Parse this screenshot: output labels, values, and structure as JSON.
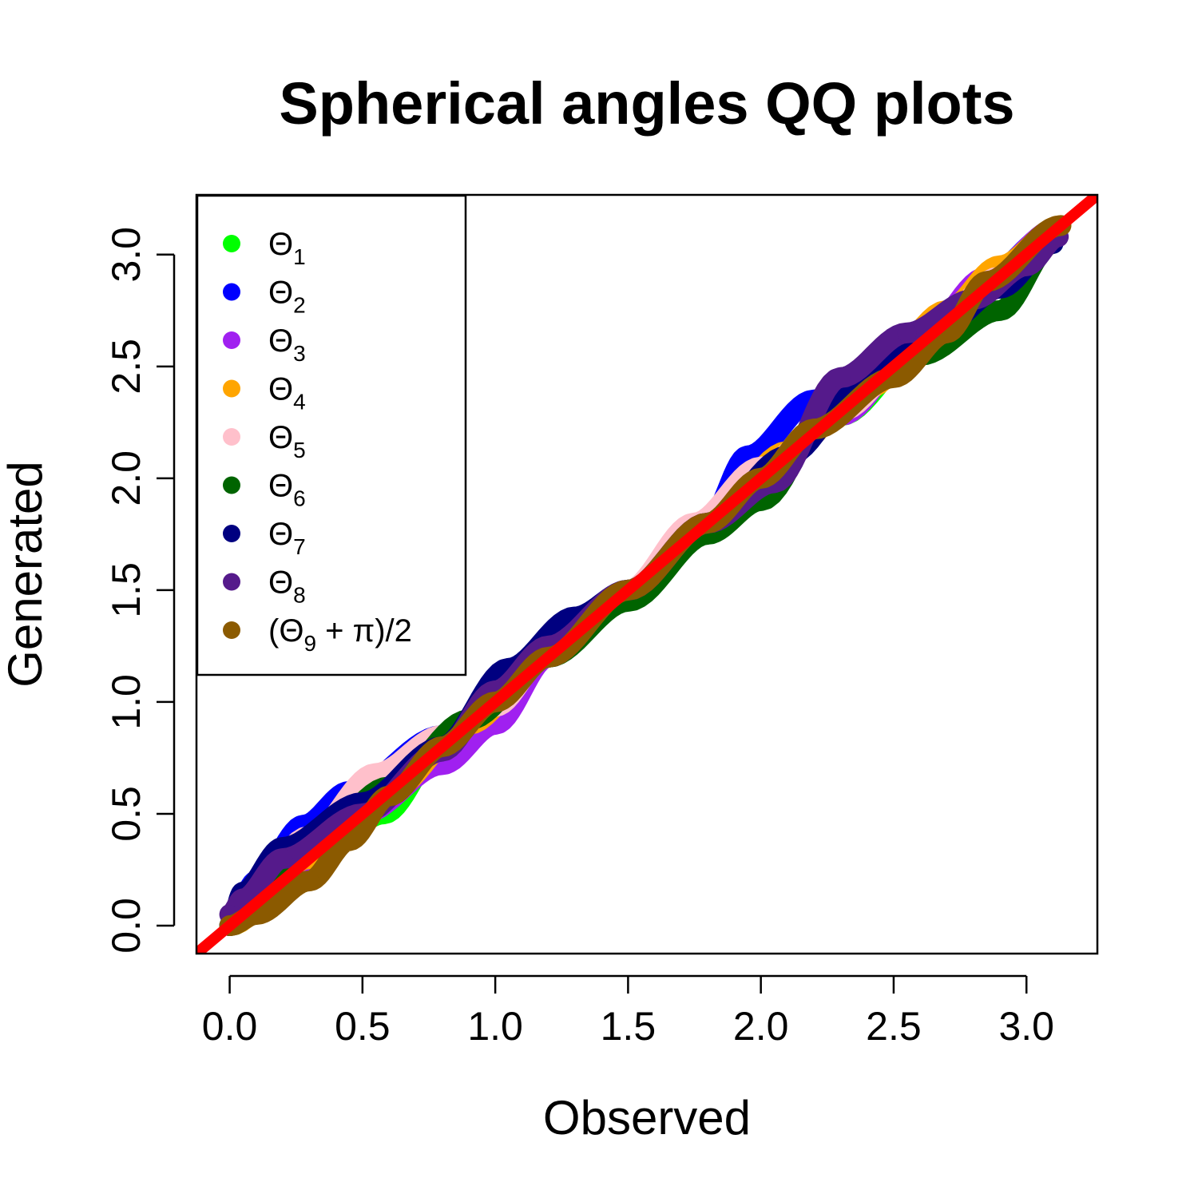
{
  "chart_data": {
    "type": "scatter",
    "title": "Spherical angles QQ plots",
    "xlabel": "Observed",
    "ylabel": "Generated",
    "xlim": [
      -0.125,
      3.267
    ],
    "ylim": [
      -0.125,
      3.267
    ],
    "xticks": [
      0.0,
      0.5,
      1.0,
      1.5,
      2.0,
      2.5,
      3.0
    ],
    "yticks": [
      0.0,
      0.5,
      1.0,
      1.5,
      2.0,
      2.5,
      3.0
    ],
    "xtick_labels": [
      "0.0",
      "0.5",
      "1.0",
      "1.5",
      "2.0",
      "2.5",
      "3.0"
    ],
    "ytick_labels": [
      "0.0",
      "0.5",
      "1.0",
      "1.5",
      "2.0",
      "2.5",
      "3.0"
    ],
    "reference_line": {
      "type": "y=x",
      "color": "#ff0000"
    },
    "legend_position": "top-left",
    "series": [
      {
        "name": "Θ",
        "sub": "1",
        "suffix": "",
        "color": "#00ff00",
        "points": [
          [
            0.0,
            0.0
          ],
          [
            0.2,
            0.2
          ],
          [
            0.4,
            0.4
          ],
          [
            0.58,
            0.5
          ],
          [
            0.8,
            0.8
          ],
          [
            1.0,
            1.0
          ],
          [
            1.2,
            1.2
          ],
          [
            1.5,
            1.5
          ],
          [
            1.8,
            1.78
          ],
          [
            2.0,
            1.98
          ],
          [
            2.3,
            2.28
          ],
          [
            2.6,
            2.58
          ],
          [
            2.9,
            2.88
          ],
          [
            3.1,
            3.1
          ]
        ]
      },
      {
        "name": "Θ",
        "sub": "2",
        "suffix": "",
        "color": "#0000ff",
        "points": [
          [
            0.0,
            0.0
          ],
          [
            0.1,
            0.2
          ],
          [
            0.28,
            0.45
          ],
          [
            0.45,
            0.6
          ],
          [
            0.8,
            0.85
          ],
          [
            1.0,
            1.0
          ],
          [
            1.2,
            1.25
          ],
          [
            1.5,
            1.5
          ],
          [
            1.8,
            1.8
          ],
          [
            1.95,
            2.1
          ],
          [
            2.2,
            2.35
          ],
          [
            2.5,
            2.55
          ],
          [
            2.78,
            2.78
          ],
          [
            2.85,
            2.9
          ],
          [
            3.1,
            3.1
          ]
        ]
      },
      {
        "name": "Θ",
        "sub": "3",
        "suffix": "",
        "color": "#a020f0",
        "points": [
          [
            0.0,
            0.0
          ],
          [
            0.2,
            0.18
          ],
          [
            0.5,
            0.5
          ],
          [
            0.8,
            0.72
          ],
          [
            1.0,
            0.9
          ],
          [
            1.2,
            1.2
          ],
          [
            1.5,
            1.48
          ],
          [
            1.8,
            1.8
          ],
          [
            2.0,
            1.98
          ],
          [
            2.3,
            2.28
          ],
          [
            2.6,
            2.62
          ],
          [
            2.85,
            2.9
          ],
          [
            3.12,
            3.12
          ]
        ]
      },
      {
        "name": "Θ",
        "sub": "4",
        "suffix": "",
        "color": "#ffa500",
        "points": [
          [
            0.0,
            0.0
          ],
          [
            0.3,
            0.3
          ],
          [
            0.6,
            0.6
          ],
          [
            0.9,
            0.9
          ],
          [
            1.2,
            1.22
          ],
          [
            1.5,
            1.5
          ],
          [
            1.8,
            1.8
          ],
          [
            2.1,
            2.12
          ],
          [
            2.4,
            2.4
          ],
          [
            2.7,
            2.75
          ],
          [
            2.9,
            2.95
          ],
          [
            3.13,
            3.13
          ]
        ]
      },
      {
        "name": "Θ",
        "sub": "5",
        "suffix": "",
        "color": "#ffc0cb",
        "points": [
          [
            0.0,
            0.0
          ],
          [
            0.3,
            0.4
          ],
          [
            0.55,
            0.68
          ],
          [
            0.8,
            0.85
          ],
          [
            1.0,
            0.98
          ],
          [
            1.2,
            1.22
          ],
          [
            1.5,
            1.5
          ],
          [
            1.75,
            1.8
          ],
          [
            2.0,
            2.05
          ],
          [
            2.3,
            2.3
          ],
          [
            2.6,
            2.6
          ],
          [
            2.9,
            2.9
          ],
          [
            3.12,
            3.12
          ]
        ]
      },
      {
        "name": "Θ",
        "sub": "6",
        "suffix": "",
        "color": "#006400",
        "points": [
          [
            0.0,
            0.0
          ],
          [
            0.3,
            0.35
          ],
          [
            0.6,
            0.62
          ],
          [
            0.9,
            0.92
          ],
          [
            1.2,
            1.2
          ],
          [
            1.5,
            1.45
          ],
          [
            1.8,
            1.75
          ],
          [
            2.0,
            1.9
          ],
          [
            2.3,
            2.4
          ],
          [
            2.6,
            2.55
          ],
          [
            2.9,
            2.75
          ],
          [
            3.1,
            3.05
          ]
        ]
      },
      {
        "name": "Θ",
        "sub": "7",
        "suffix": "",
        "color": "#000080",
        "points": [
          [
            0.0,
            0.0
          ],
          [
            0.05,
            0.15
          ],
          [
            0.2,
            0.35
          ],
          [
            0.5,
            0.55
          ],
          [
            0.8,
            0.8
          ],
          [
            1.05,
            1.15
          ],
          [
            1.3,
            1.38
          ],
          [
            1.5,
            1.5
          ],
          [
            1.8,
            1.8
          ],
          [
            2.1,
            2.1
          ],
          [
            2.4,
            2.45
          ],
          [
            2.7,
            2.7
          ],
          [
            2.9,
            2.85
          ],
          [
            3.1,
            3.05
          ]
        ]
      },
      {
        "name": "Θ",
        "sub": "8",
        "suffix": "",
        "color": "#551a8b",
        "points": [
          [
            0.0,
            0.05
          ],
          [
            0.05,
            0.12
          ],
          [
            0.2,
            0.3
          ],
          [
            0.5,
            0.5
          ],
          [
            0.8,
            0.78
          ],
          [
            1.0,
            1.05
          ],
          [
            1.2,
            1.25
          ],
          [
            1.5,
            1.5
          ],
          [
            1.8,
            1.8
          ],
          [
            2.05,
            1.98
          ],
          [
            2.3,
            2.45
          ],
          [
            2.55,
            2.65
          ],
          [
            2.8,
            2.8
          ],
          [
            3.0,
            2.95
          ],
          [
            3.12,
            3.08
          ]
        ]
      },
      {
        "name": "(Θ",
        "sub": "9",
        "suffix": " + π)/2",
        "color": "#8b5a00",
        "points": [
          [
            0.0,
            0.0
          ],
          [
            0.1,
            0.05
          ],
          [
            0.3,
            0.2
          ],
          [
            0.45,
            0.38
          ],
          [
            0.6,
            0.58
          ],
          [
            0.8,
            0.8
          ],
          [
            1.0,
            1.0
          ],
          [
            1.2,
            1.2
          ],
          [
            1.5,
            1.5
          ],
          [
            1.8,
            1.8
          ],
          [
            2.0,
            2.0
          ],
          [
            2.2,
            2.22
          ],
          [
            2.5,
            2.45
          ],
          [
            2.7,
            2.65
          ],
          [
            2.85,
            2.88
          ],
          [
            3.13,
            3.13
          ]
        ]
      }
    ]
  }
}
